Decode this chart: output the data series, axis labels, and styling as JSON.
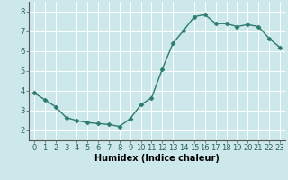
{
  "x": [
    0,
    1,
    2,
    3,
    4,
    5,
    6,
    7,
    8,
    9,
    10,
    11,
    12,
    13,
    14,
    15,
    16,
    17,
    18,
    19,
    20,
    21,
    22,
    23
  ],
  "y": [
    3.9,
    3.55,
    3.2,
    2.65,
    2.5,
    2.4,
    2.35,
    2.3,
    2.2,
    2.6,
    3.3,
    3.65,
    5.1,
    6.4,
    7.05,
    7.75,
    7.85,
    7.4,
    7.4,
    7.25,
    7.35,
    7.25,
    6.65,
    6.2
  ],
  "line_color": "#2d7a6e",
  "marker": "D",
  "marker_size": 2.5,
  "line_width": 1.0,
  "bg_color": "#cce8ea",
  "grid_color": "#ffffff",
  "xlabel": "Humidex (Indice chaleur)",
  "xlabel_fontsize": 7,
  "tick_fontsize": 6,
  "xlim": [
    -0.5,
    23.5
  ],
  "ylim": [
    1.5,
    8.5
  ],
  "yticks": [
    2,
    3,
    4,
    5,
    6,
    7,
    8
  ],
  "xticks": [
    0,
    1,
    2,
    3,
    4,
    5,
    6,
    7,
    8,
    9,
    10,
    11,
    12,
    13,
    14,
    15,
    16,
    17,
    18,
    19,
    20,
    21,
    22,
    23
  ]
}
